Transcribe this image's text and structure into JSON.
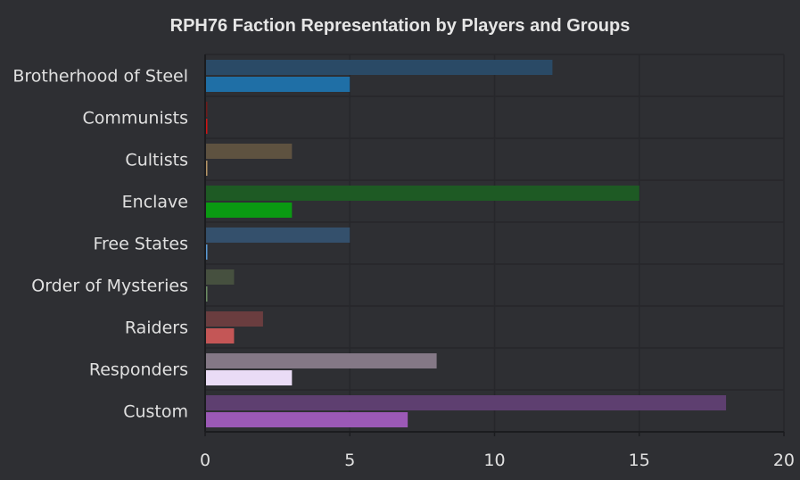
{
  "chart_data": {
    "type": "bar",
    "orientation": "horizontal",
    "title": "RPH76 Faction Representation by Players and Groups",
    "xlabel": "",
    "ylabel": "",
    "xlim": [
      0,
      20
    ],
    "xticks": [
      "0",
      "5",
      "10",
      "15",
      "20"
    ],
    "grid": true,
    "legend": "none",
    "categories": [
      "Brotherhood of Steel",
      "Communists",
      "Cultists",
      "Enclave",
      "Free States",
      "Order of Mysteries",
      "Raiders",
      "Responders",
      "Custom"
    ],
    "series": [
      {
        "values": [
          12,
          0,
          3,
          15,
          5,
          1,
          2,
          8,
          18
        ],
        "colors": [
          "#2a4a66",
          "#6e1b1b",
          "#5e5240",
          "#1e5a24",
          "#34506c",
          "#46503f",
          "#6a3d3f",
          "#847886",
          "#5e3f70"
        ]
      },
      {
        "values": [
          5,
          0,
          0,
          3,
          0,
          0,
          1,
          3,
          7
        ],
        "colors": [
          "#1f6fa6",
          "#d01414",
          "#b59566",
          "#0a9a12",
          "#5a9ad4",
          "#6c8c63",
          "#c45656",
          "#eadcf6",
          "#9b59b6"
        ]
      }
    ]
  }
}
